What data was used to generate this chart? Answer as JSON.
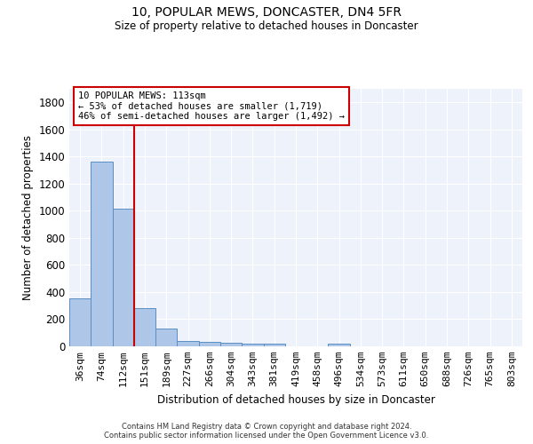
{
  "title": "10, POPULAR MEWS, DONCASTER, DN4 5FR",
  "subtitle": "Size of property relative to detached houses in Doncaster",
  "xlabel": "Distribution of detached houses by size in Doncaster",
  "ylabel": "Number of detached properties",
  "categories": [
    "36sqm",
    "74sqm",
    "112sqm",
    "151sqm",
    "189sqm",
    "227sqm",
    "266sqm",
    "304sqm",
    "343sqm",
    "381sqm",
    "419sqm",
    "458sqm",
    "496sqm",
    "534sqm",
    "573sqm",
    "611sqm",
    "650sqm",
    "688sqm",
    "726sqm",
    "765sqm",
    "803sqm"
  ],
  "values": [
    352,
    1360,
    1015,
    285,
    130,
    42,
    35,
    25,
    18,
    18,
    0,
    0,
    20,
    0,
    0,
    0,
    0,
    0,
    0,
    0,
    0
  ],
  "bar_color": "#aec6e8",
  "bar_edge_color": "#5a8fc2",
  "vline_x": 2.5,
  "vline_color": "#cc0000",
  "annotation_text": "10 POPULAR MEWS: 113sqm\n← 53% of detached houses are smaller (1,719)\n46% of semi-detached houses are larger (1,492) →",
  "annotation_box_color": "#ffffff",
  "annotation_box_edge_color": "#cc0000",
  "ylim": [
    0,
    1900
  ],
  "yticks": [
    0,
    200,
    400,
    600,
    800,
    1000,
    1200,
    1400,
    1600,
    1800
  ],
  "background_color": "#eef2fb",
  "footer_line1": "Contains HM Land Registry data © Crown copyright and database right 2024.",
  "footer_line2": "Contains public sector information licensed under the Open Government Licence v3.0."
}
